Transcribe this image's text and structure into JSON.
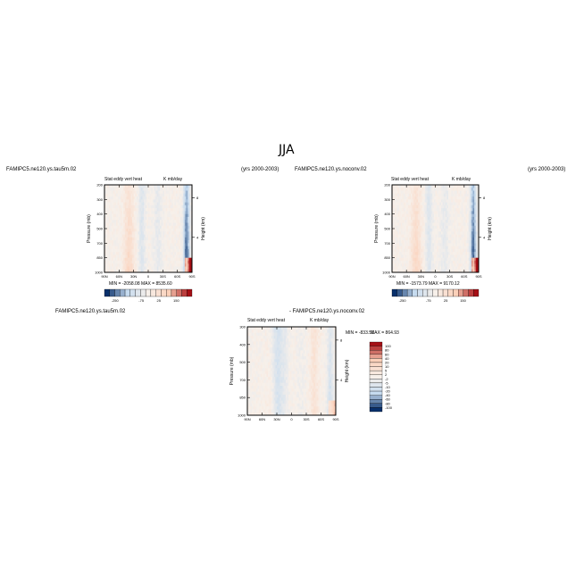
{
  "page_title": "JJA",
  "colors": {
    "axis": "#000000",
    "strong_negative": "#08306b",
    "weak_negative": "#c6dbef",
    "neutral": "#f7f0ea",
    "weak_positive": "#fbd0b9",
    "strong_positive": "#a50f15"
  },
  "chart_data": [
    {
      "type": "heatmap",
      "left_title": "FAMIPC5.ne120.ys.tau5m.02",
      "right_title": "(yrs 2000-2003)",
      "inner_left": "Stat eddy vert heat",
      "inner_right": "K mb/day",
      "ylabel": "Pressure (mb)",
      "y2label": "Height (km)",
      "x_ticks": [
        "90N",
        "60N",
        "30N",
        "0",
        "30S",
        "60S",
        "90S"
      ],
      "y_ticks": [
        "200",
        "300",
        "400",
        "500",
        "700",
        "850",
        "1000"
      ],
      "y2_ticks": [
        "8",
        "4"
      ],
      "stats": "MIN = -2058.08   MAX = 8535.60",
      "colorbar_labels": [
        "-250",
        "-75",
        "25",
        "150"
      ]
    },
    {
      "type": "heatmap",
      "left_title": "FAMIPC5.ne120.ys.noconv.02",
      "right_title": "(yrs 2000-2003)",
      "inner_left": "Stat eddy vert heat",
      "inner_right": "K mb/day",
      "ylabel": "Pressure (mb)",
      "y2label": "Height (km)",
      "x_ticks": [
        "90N",
        "60N",
        "30N",
        "0",
        "30S",
        "60S",
        "90S"
      ],
      "y_ticks": [
        "200",
        "300",
        "400",
        "500",
        "700",
        "850",
        "1000"
      ],
      "y2_ticks": [
        "8",
        "4"
      ],
      "stats": "MIN = -1573.79   MAX = 9170.12",
      "colorbar_labels": [
        "-250",
        "-75",
        "25",
        "150"
      ]
    },
    {
      "type": "heatmap",
      "left_title": "FAMIPC5.ne120.ys.tau5m.02",
      "right_title": "- FAMIPC5.ne120.ys.noconv.02",
      "inner_left": "Stat eddy vert heat",
      "inner_right": "K mb/day",
      "ylabel": "Pressure (mb)",
      "y2label": "Height (km)",
      "x_ticks": [
        "90N",
        "60N",
        "30N",
        "0",
        "30S",
        "60S",
        "90S"
      ],
      "y_ticks": [
        "300",
        "400",
        "500",
        "700",
        "850",
        "1000"
      ],
      "y2_ticks": [
        "8",
        "4"
      ],
      "stats_min": "MIN = -833.51",
      "stats_max": "MAX = 864.93",
      "colorbar_labels": [
        "100",
        "80",
        "60",
        "40",
        "20",
        "10",
        "5",
        "2",
        "-2",
        "-5",
        "-10",
        "-20",
        "-40",
        "-60",
        "-80",
        "-100"
      ]
    }
  ]
}
